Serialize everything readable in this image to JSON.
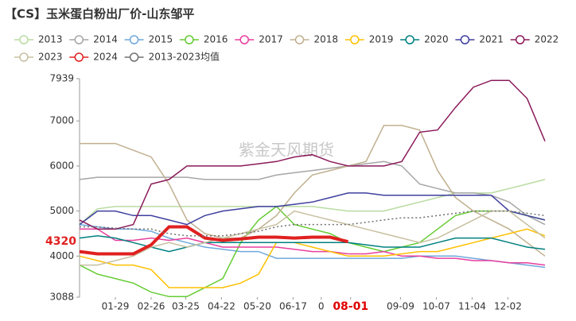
{
  "chart_data": {
    "type": "line",
    "title": "【CS】玉米蛋白粉出厂价-山东邹平",
    "watermark": "紫金天风期货",
    "annotation": "4320",
    "xlim": [
      1,
      365
    ],
    "ylim": [
      3088,
      7939
    ],
    "yticks": [
      3088,
      4000,
      5000,
      6000,
      7000,
      7939
    ],
    "xticks": [
      {
        "value": 29,
        "label": "01-29"
      },
      {
        "value": 57,
        "label": "02-26"
      },
      {
        "value": 84,
        "label": "03-25"
      },
      {
        "value": 112,
        "label": "04-22"
      },
      {
        "value": 140,
        "label": "05-20"
      },
      {
        "value": 168,
        "label": "06-17"
      },
      {
        "value": 190,
        "label": "0"
      },
      {
        "value": 213,
        "label": "08-01",
        "color": "#e00000"
      },
      {
        "value": 252,
        "label": "09-09"
      },
      {
        "value": 280,
        "label": "10-07"
      },
      {
        "value": 308,
        "label": "11-04"
      },
      {
        "value": 336,
        "label": "12-02"
      }
    ],
    "x": [
      1,
      15,
      29,
      43,
      57,
      71,
      85,
      99,
      113,
      127,
      141,
      155,
      169,
      183,
      197,
      211,
      225,
      239,
      253,
      267,
      281,
      295,
      309,
      323,
      337,
      351,
      365
    ],
    "series": [
      {
        "name": "2013",
        "color": "#b9dca2",
        "values": [
          4700,
          5050,
          5100,
          5100,
          5100,
          5100,
          5100,
          5100,
          5100,
          5100,
          5100,
          5100,
          5100,
          5100,
          5050,
          5000,
          5000,
          5000,
          5100,
          5200,
          5300,
          5400,
          5400,
          5400,
          5500,
          5600,
          5700
        ]
      },
      {
        "name": "2014",
        "color": "#a6a6a6",
        "values": [
          5700,
          5750,
          5750,
          5750,
          5750,
          5750,
          5750,
          5700,
          5700,
          5700,
          5700,
          5800,
          5850,
          5900,
          5950,
          6000,
          6050,
          6100,
          6000,
          5600,
          5500,
          5400,
          5400,
          5350,
          5200,
          4900,
          4700
        ]
      },
      {
        "name": "2015",
        "color": "#6fa8dc",
        "values": [
          4700,
          4650,
          4600,
          4600,
          4550,
          4400,
          4300,
          4200,
          4150,
          4100,
          4100,
          3950,
          3950,
          3950,
          3950,
          3950,
          3950,
          3950,
          3950,
          4000,
          4000,
          4000,
          3950,
          3900,
          3850,
          3800,
          3750
        ]
      },
      {
        "name": "2016",
        "color": "#66cc33",
        "values": [
          3800,
          3600,
          3500,
          3400,
          3200,
          3100,
          3100,
          3300,
          3500,
          4300,
          4800,
          5100,
          4700,
          4600,
          4500,
          4300,
          4200,
          4100,
          4200,
          4300,
          4600,
          4900,
          5000,
          5000,
          5000,
          4900,
          4800
        ]
      },
      {
        "name": "2017",
        "color": "#e83e9e",
        "values": [
          4600,
          4600,
          4350,
          4350,
          4400,
          4350,
          4400,
          4300,
          4200,
          4200,
          4200,
          4200,
          4150,
          4100,
          4100,
          4050,
          4050,
          4100,
          4000,
          4000,
          3950,
          3950,
          3900,
          3900,
          3850,
          3850,
          3800
        ]
      },
      {
        "name": "2018",
        "color": "#c0b090",
        "values": [
          6500,
          6500,
          6500,
          6350,
          6200,
          5600,
          4800,
          4500,
          4400,
          4400,
          4600,
          4900,
          5400,
          5800,
          5900,
          6000,
          6100,
          6900,
          6900,
          6800,
          5900,
          5300,
          5000,
          4800,
          4600,
          4300,
          4000
        ]
      },
      {
        "name": "2019",
        "color": "#ffc000",
        "values": [
          4000,
          3900,
          3800,
          3800,
          3700,
          3300,
          3300,
          3300,
          3300,
          3400,
          3600,
          4300,
          4300,
          4200,
          4100,
          4000,
          4000,
          4000,
          4050,
          4100,
          4100,
          4200,
          4300,
          4400,
          4500,
          4600,
          4450
        ]
      },
      {
        "name": "2020",
        "color": "#008080",
        "values": [
          4400,
          4450,
          4400,
          4300,
          4200,
          4100,
          4200,
          4300,
          4300,
          4300,
          4300,
          4300,
          4300,
          4300,
          4300,
          4300,
          4250,
          4200,
          4200,
          4200,
          4300,
          4400,
          4400,
          4400,
          4300,
          4200,
          4150
        ]
      },
      {
        "name": "2021",
        "color": "#3f3f9f",
        "values": [
          4700,
          5000,
          5000,
          4900,
          4900,
          4800,
          4700,
          4900,
          5000,
          5050,
          5100,
          5100,
          5150,
          5200,
          5300,
          5400,
          5400,
          5350,
          5350,
          5350,
          5350,
          5350,
          5350,
          5350,
          5000,
          4900,
          4800
        ]
      },
      {
        "name": "2022",
        "color": "#8b1a5a",
        "values": [
          4800,
          4600,
          4600,
          4700,
          5600,
          5700,
          6000,
          6000,
          6000,
          6000,
          6050,
          6100,
          6200,
          6250,
          6100,
          6000,
          6000,
          6000,
          6100,
          6750,
          6800,
          7300,
          7750,
          7900,
          7900,
          7500,
          6550
        ]
      },
      {
        "name": "2023",
        "color": "#c8c0a0",
        "values": [
          3800,
          3800,
          3900,
          4000,
          4200,
          4300,
          4200,
          4300,
          4400,
          4500,
          4600,
          4700,
          5000,
          4900,
          4800,
          4700,
          4600,
          4500,
          4400,
          4300,
          4400,
          4600,
          4800,
          5000,
          5000,
          4700,
          4400
        ]
      },
      {
        "name": "2024",
        "color": "#e02020",
        "line_width": 4,
        "values": [
          4100,
          4050,
          4050,
          4050,
          4250,
          4650,
          4650,
          4400,
          4350,
          4380,
          4420,
          4420,
          4400,
          4420,
          4420,
          4320,
          null,
          null,
          null,
          null,
          null,
          null,
          null,
          null,
          null,
          null,
          null
        ]
      },
      {
        "name": "2013-2023均值",
        "color": "#707070",
        "dash": true,
        "values": [
          4650,
          4650,
          4620,
          4600,
          4600,
          4500,
          4450,
          4450,
          4450,
          4500,
          4550,
          4650,
          4700,
          4700,
          4700,
          4700,
          4750,
          4800,
          4850,
          4850,
          4900,
          4950,
          5000,
          5000,
          5000,
          4950,
          4900
        ]
      }
    ]
  }
}
